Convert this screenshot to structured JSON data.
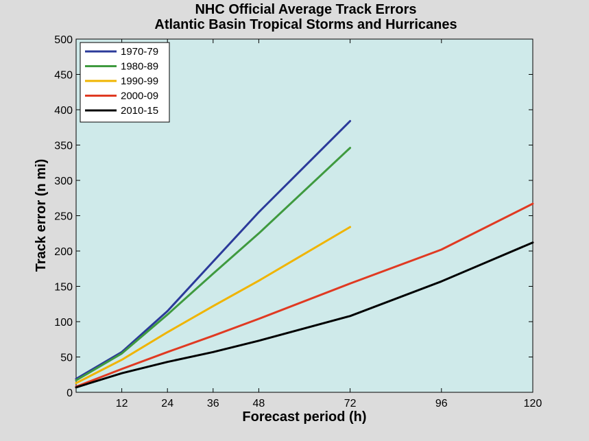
{
  "chart_data": {
    "type": "line",
    "title": "NHC Official Average Track Errors",
    "subtitle": "Atlantic Basin Tropical Storms and Hurricanes",
    "xlabel": "Forecast period (h)",
    "ylabel": "Track error (n mi)",
    "xlim": [
      0,
      120
    ],
    "ylim": [
      0,
      500
    ],
    "x_ticks": [
      12,
      24,
      36,
      48,
      72,
      96,
      120
    ],
    "y_ticks": [
      0,
      50,
      100,
      150,
      200,
      250,
      300,
      350,
      400,
      450,
      500
    ],
    "grid": false,
    "legend_position": "top-left",
    "plot_background": "#cfeaea",
    "series": [
      {
        "name": "1970-79",
        "color": "#2b3a9a",
        "x": [
          0,
          12,
          24,
          36,
          48,
          72
        ],
        "y": [
          19,
          57,
          115,
          185,
          255,
          384
        ]
      },
      {
        "name": "1980-89",
        "color": "#3f9a3f",
        "x": [
          0,
          12,
          24,
          36,
          48,
          72
        ],
        "y": [
          17,
          55,
          110,
          168,
          225,
          346
        ]
      },
      {
        "name": "1990-99",
        "color": "#f0b400",
        "x": [
          0,
          12,
          24,
          36,
          48,
          72
        ],
        "y": [
          13,
          46,
          85,
          122,
          158,
          234
        ]
      },
      {
        "name": "2000-09",
        "color": "#e03a22",
        "x": [
          0,
          12,
          24,
          36,
          48,
          72,
          96,
          120
        ],
        "y": [
          8,
          33,
          57,
          80,
          104,
          154,
          202,
          267
        ]
      },
      {
        "name": "2010-15",
        "color": "#000000",
        "x": [
          0,
          12,
          24,
          36,
          48,
          72,
          96,
          120
        ],
        "y": [
          7,
          27,
          43,
          57,
          73,
          108,
          157,
          212
        ]
      }
    ]
  }
}
